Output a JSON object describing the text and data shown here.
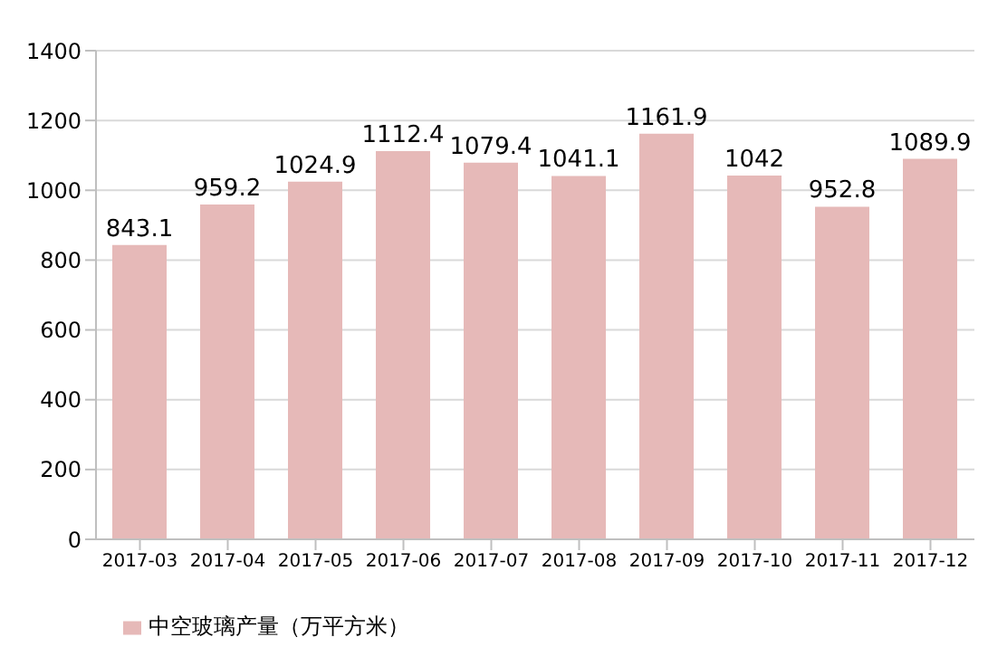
{
  "chart_data": {
    "type": "bar",
    "categories": [
      "2017-03",
      "2017-04",
      "2017-05",
      "2017-06",
      "2017-07",
      "2017-08",
      "2017-09",
      "2017-10",
      "2017-11",
      "2017-12"
    ],
    "series": [
      {
        "name": "中空玻璃产量（万平方米）",
        "color": "#e6b9b8",
        "values": [
          843.1,
          959.2,
          1024.9,
          1112.4,
          1079.4,
          1041.1,
          1161.9,
          1042,
          952.8,
          1089.9
        ]
      }
    ],
    "ylim": [
      0,
      1400
    ],
    "yticks": [
      0,
      200,
      400,
      600,
      800,
      1000,
      1200,
      1400
    ],
    "grid": "y",
    "legend": "bottom",
    "data_labels": true
  }
}
